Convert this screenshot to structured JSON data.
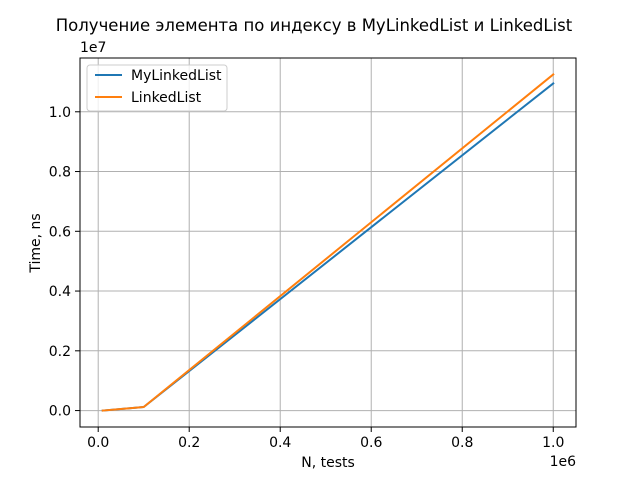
{
  "chart_data": {
    "type": "line",
    "title": "Получение элемента по индексу в MyLinkedList и LinkedList",
    "xlabel": "N, tests",
    "ylabel": "Time, ns",
    "x_offset_label": "1e6",
    "y_offset_label": "1e7",
    "x_ticks": [
      "0.0",
      "0.2",
      "0.4",
      "0.6",
      "0.8",
      "1.0"
    ],
    "y_ticks": [
      "0.0",
      "0.2",
      "0.4",
      "0.6",
      "0.8",
      "1.0"
    ],
    "xlim": [
      -40000,
      1050000
    ],
    "ylim": [
      -550000,
      11800000
    ],
    "grid": true,
    "legend_position": "top-left",
    "x": [
      10000,
      100000,
      1000000
    ],
    "series": [
      {
        "name": "MyLinkedList",
        "color": "#1f77b4",
        "values": [
          0,
          120000,
          10950000
        ]
      },
      {
        "name": "LinkedList",
        "color": "#ff7f0e",
        "values": [
          0,
          120000,
          11250000
        ]
      }
    ]
  }
}
